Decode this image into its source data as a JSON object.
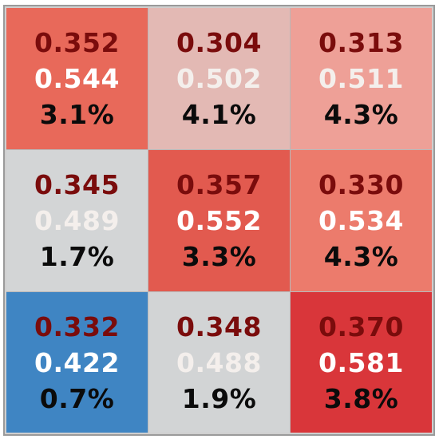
{
  "chart_data": {
    "type": "heatmap",
    "rows": 3,
    "cols": 3,
    "cells": [
      [
        {
          "a": "0.352",
          "b": "0.544",
          "c": "3.1%",
          "color": "#e8695a"
        },
        {
          "a": "0.304",
          "b": "0.502",
          "c": "4.1%",
          "color": "#e3b9b4"
        },
        {
          "a": "0.313",
          "b": "0.511",
          "c": "4.3%",
          "color": "#eea097"
        }
      ],
      [
        {
          "a": "0.345",
          "b": "0.489",
          "c": "1.7%",
          "color": "#d3d5d6"
        },
        {
          "a": "0.357",
          "b": "0.552",
          "c": "3.3%",
          "color": "#e25a4f"
        },
        {
          "a": "0.330",
          "b": "0.534",
          "c": "4.3%",
          "color": "#ec7b6c"
        }
      ],
      [
        {
          "a": "0.332",
          "b": "0.422",
          "c": "0.7%",
          "color": "#3f85c3"
        },
        {
          "a": "0.348",
          "b": "0.488",
          "c": "1.9%",
          "color": "#d2d4d5"
        },
        {
          "a": "0.370",
          "b": "0.581",
          "c": "3.8%",
          "color": "#d9363a"
        }
      ]
    ]
  }
}
